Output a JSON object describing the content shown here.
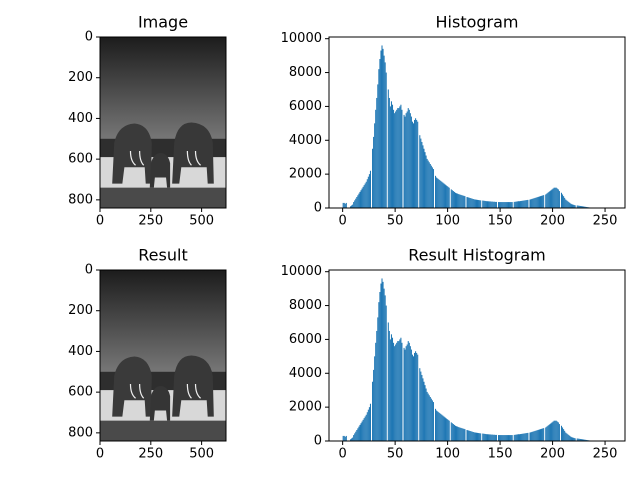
{
  "chart_data": [
    {
      "type": "image",
      "title": "Image",
      "xlim": [
        0,
        620
      ],
      "ylim": [
        840,
        0
      ],
      "xticks": [
        0,
        250,
        500
      ],
      "yticks": [
        0,
        200,
        400,
        600,
        800
      ]
    },
    {
      "type": "histogram",
      "title": "Histogram",
      "color": "#1f77b4",
      "xlim": [
        -13,
        269
      ],
      "ylim": [
        0,
        10100
      ],
      "xticks": [
        0,
        50,
        100,
        150,
        200,
        250
      ],
      "yticks": [
        0,
        2000,
        4000,
        6000,
        8000,
        10000
      ],
      "x": [
        0,
        1,
        2,
        3,
        4,
        5,
        6,
        7,
        8,
        9,
        10,
        11,
        12,
        13,
        14,
        15,
        16,
        17,
        18,
        19,
        20,
        21,
        22,
        23,
        24,
        25,
        26,
        27,
        28,
        29,
        30,
        31,
        32,
        33,
        34,
        35,
        36,
        37,
        38,
        39,
        40,
        41,
        42,
        43,
        44,
        45,
        46,
        47,
        48,
        49,
        50,
        51,
        52,
        53,
        54,
        55,
        56,
        57,
        58,
        59,
        60,
        61,
        62,
        63,
        64,
        65,
        66,
        67,
        68,
        69,
        70,
        71,
        72,
        73,
        74,
        75,
        76,
        77,
        78,
        79,
        80,
        81,
        82,
        83,
        84,
        85,
        86,
        87,
        88,
        89,
        90,
        91,
        92,
        93,
        94,
        95,
        96,
        97,
        98,
        99,
        100,
        101,
        102,
        103,
        104,
        105,
        106,
        107,
        108,
        109,
        110,
        111,
        112,
        113,
        114,
        115,
        116,
        117,
        118,
        119,
        120,
        121,
        122,
        123,
        124,
        125,
        126,
        127,
        128,
        129,
        130,
        131,
        132,
        133,
        134,
        135,
        136,
        137,
        138,
        139,
        140,
        141,
        142,
        143,
        144,
        145,
        146,
        147,
        148,
        149,
        150,
        151,
        152,
        153,
        154,
        155,
        156,
        157,
        158,
        159,
        160,
        161,
        162,
        163,
        164,
        165,
        166,
        167,
        168,
        169,
        170,
        171,
        172,
        173,
        174,
        175,
        176,
        177,
        178,
        179,
        180,
        181,
        182,
        183,
        184,
        185,
        186,
        187,
        188,
        189,
        190,
        191,
        192,
        193,
        194,
        195,
        196,
        197,
        198,
        199,
        200,
        201,
        202,
        203,
        204,
        205,
        206,
        207,
        208,
        209,
        210,
        211,
        212,
        213,
        214,
        215,
        216,
        217,
        218,
        219,
        220,
        221,
        222,
        223,
        224,
        225,
        226,
        227,
        228,
        229,
        230,
        231,
        232,
        233,
        234,
        235,
        236,
        237,
        238,
        239,
        240,
        241,
        242,
        243,
        244,
        245,
        246,
        247,
        248,
        249,
        250,
        251,
        252,
        253,
        254,
        255
      ],
      "values": [
        300,
        300,
        250,
        300,
        0,
        0,
        0,
        100,
        150,
        200,
        350,
        450,
        550,
        650,
        750,
        850,
        950,
        1050,
        1150,
        1250,
        1350,
        1450,
        1550,
        1700,
        1850,
        2000,
        2200,
        0,
        3500,
        4200,
        5000,
        5800,
        6500,
        7300,
        8200,
        8800,
        9300,
        9600,
        9400,
        9000,
        8600,
        8000,
        0,
        7000,
        6500,
        6000,
        6300,
        6100,
        5800,
        5600,
        5700,
        5800,
        5900,
        5900,
        6000,
        6100,
        5800,
        0,
        5500,
        5400,
        5600,
        5700,
        5900,
        5800,
        5600,
        5400,
        5100,
        5000,
        5200,
        5300,
        5200,
        5100,
        0,
        4300,
        4100,
        3900,
        3700,
        3500,
        3300,
        3100,
        2900,
        2800,
        2700,
        2600,
        2500,
        2400,
        2300,
        0,
        1900,
        1800,
        1750,
        1700,
        1650,
        1600,
        1550,
        1500,
        1450,
        1400,
        1350,
        1300,
        1250,
        1200,
        0,
        1100,
        1050,
        1000,
        950,
        900,
        870,
        850,
        820,
        800,
        780,
        760,
        740,
        720,
        700,
        0,
        650,
        630,
        610,
        590,
        570,
        550,
        530,
        510,
        500,
        490,
        480,
        470,
        460,
        450,
        0,
        440,
        430,
        420,
        410,
        400,
        400,
        390,
        390,
        380,
        380,
        370,
        370,
        360,
        360,
        0,
        350,
        350,
        350,
        350,
        350,
        350,
        350,
        350,
        350,
        350,
        350,
        350,
        350,
        350,
        0,
        360,
        370,
        380,
        390,
        400,
        400,
        410,
        420,
        430,
        440,
        450,
        460,
        470,
        480,
        0,
        500,
        520,
        540,
        560,
        580,
        600,
        620,
        640,
        660,
        680,
        700,
        720,
        740,
        760,
        0,
        800,
        850,
        900,
        950,
        1000,
        1050,
        1100,
        1150,
        1200,
        1200,
        1200,
        1150,
        1100,
        1000,
        0,
        900,
        800,
        700,
        600,
        500,
        450,
        400,
        350,
        300,
        250,
        220,
        200,
        180,
        160,
        0,
        150,
        140,
        130,
        120,
        110,
        100,
        90,
        80,
        70,
        60,
        50,
        40,
        30,
        20,
        0,
        20,
        20,
        15,
        15,
        10,
        10,
        10,
        5,
        5,
        5,
        5,
        5,
        5,
        5,
        0,
        0,
        0,
        0
      ]
    },
    {
      "type": "image",
      "title": "Result",
      "xlim": [
        0,
        620
      ],
      "ylim": [
        840,
        0
      ],
      "xticks": [
        0,
        250,
        500
      ],
      "yticks": [
        0,
        200,
        400,
        600,
        800
      ]
    },
    {
      "type": "histogram",
      "title": "Result Histogram",
      "color": "#1f77b4",
      "xlim": [
        -13,
        269
      ],
      "ylim": [
        0,
        10100
      ],
      "xticks": [
        0,
        50,
        100,
        150,
        200,
        250
      ],
      "yticks": [
        0,
        2000,
        4000,
        6000,
        8000,
        10000
      ],
      "x": [
        0,
        1,
        2,
        3,
        4,
        5,
        6,
        7,
        8,
        9,
        10,
        11,
        12,
        13,
        14,
        15,
        16,
        17,
        18,
        19,
        20,
        21,
        22,
        23,
        24,
        25,
        26,
        27,
        28,
        29,
        30,
        31,
        32,
        33,
        34,
        35,
        36,
        37,
        38,
        39,
        40,
        41,
        42,
        43,
        44,
        45,
        46,
        47,
        48,
        49,
        50,
        51,
        52,
        53,
        54,
        55,
        56,
        57,
        58,
        59,
        60,
        61,
        62,
        63,
        64,
        65,
        66,
        67,
        68,
        69,
        70,
        71,
        72,
        73,
        74,
        75,
        76,
        77,
        78,
        79,
        80,
        81,
        82,
        83,
        84,
        85,
        86,
        87,
        88,
        89,
        90,
        91,
        92,
        93,
        94,
        95,
        96,
        97,
        98,
        99,
        100,
        101,
        102,
        103,
        104,
        105,
        106,
        107,
        108,
        109,
        110,
        111,
        112,
        113,
        114,
        115,
        116,
        117,
        118,
        119,
        120,
        121,
        122,
        123,
        124,
        125,
        126,
        127,
        128,
        129,
        130,
        131,
        132,
        133,
        134,
        135,
        136,
        137,
        138,
        139,
        140,
        141,
        142,
        143,
        144,
        145,
        146,
        147,
        148,
        149,
        150,
        151,
        152,
        153,
        154,
        155,
        156,
        157,
        158,
        159,
        160,
        161,
        162,
        163,
        164,
        165,
        166,
        167,
        168,
        169,
        170,
        171,
        172,
        173,
        174,
        175,
        176,
        177,
        178,
        179,
        180,
        181,
        182,
        183,
        184,
        185,
        186,
        187,
        188,
        189,
        190,
        191,
        192,
        193,
        194,
        195,
        196,
        197,
        198,
        199,
        200,
        201,
        202,
        203,
        204,
        205,
        206,
        207,
        208,
        209,
        210,
        211,
        212,
        213,
        214,
        215,
        216,
        217,
        218,
        219,
        220,
        221,
        222,
        223,
        224,
        225,
        226,
        227,
        228,
        229,
        230,
        231,
        232,
        233,
        234,
        235,
        236,
        237,
        238,
        239,
        240,
        241,
        242,
        243,
        244,
        245,
        246,
        247,
        248,
        249,
        250,
        251,
        252,
        253,
        254,
        255
      ],
      "values": [
        300,
        300,
        250,
        300,
        0,
        0,
        0,
        100,
        150,
        200,
        350,
        450,
        550,
        650,
        750,
        850,
        950,
        1050,
        1150,
        1250,
        1350,
        1450,
        1550,
        1700,
        1850,
        2000,
        2200,
        0,
        3500,
        4200,
        5000,
        5800,
        6500,
        7300,
        8200,
        8800,
        9300,
        9600,
        9400,
        9000,
        8600,
        8000,
        0,
        7000,
        6500,
        6000,
        6300,
        6100,
        5800,
        5600,
        5700,
        5800,
        5900,
        5900,
        6000,
        6100,
        5800,
        0,
        5500,
        5400,
        5600,
        5700,
        5900,
        5800,
        5600,
        5400,
        5100,
        5000,
        5200,
        5300,
        5200,
        5100,
        0,
        4300,
        4100,
        3900,
        3700,
        3500,
        3300,
        3100,
        2900,
        2800,
        2700,
        2600,
        2500,
        2400,
        2300,
        0,
        1900,
        1800,
        1750,
        1700,
        1650,
        1600,
        1550,
        1500,
        1450,
        1400,
        1350,
        1300,
        1250,
        1200,
        0,
        1100,
        1050,
        1000,
        950,
        900,
        870,
        850,
        820,
        800,
        780,
        760,
        740,
        720,
        700,
        0,
        650,
        630,
        610,
        590,
        570,
        550,
        530,
        510,
        500,
        490,
        480,
        470,
        460,
        450,
        0,
        440,
        430,
        420,
        410,
        400,
        400,
        390,
        390,
        380,
        380,
        370,
        370,
        360,
        360,
        0,
        350,
        350,
        350,
        350,
        350,
        350,
        350,
        350,
        350,
        350,
        350,
        350,
        350,
        350,
        0,
        360,
        370,
        380,
        390,
        400,
        400,
        410,
        420,
        430,
        440,
        450,
        460,
        470,
        480,
        0,
        500,
        520,
        540,
        560,
        580,
        600,
        620,
        640,
        660,
        680,
        700,
        720,
        740,
        760,
        0,
        800,
        850,
        900,
        950,
        1000,
        1050,
        1100,
        1150,
        1200,
        1200,
        1200,
        1150,
        1100,
        1000,
        0,
        900,
        800,
        700,
        600,
        500,
        450,
        400,
        350,
        300,
        250,
        220,
        200,
        180,
        160,
        0,
        150,
        140,
        130,
        120,
        110,
        100,
        90,
        80,
        70,
        60,
        50,
        40,
        30,
        20,
        0,
        20,
        20,
        15,
        15,
        10,
        10,
        10,
        5,
        5,
        5,
        5,
        5,
        5,
        5,
        0,
        0,
        0,
        0
      ]
    }
  ]
}
